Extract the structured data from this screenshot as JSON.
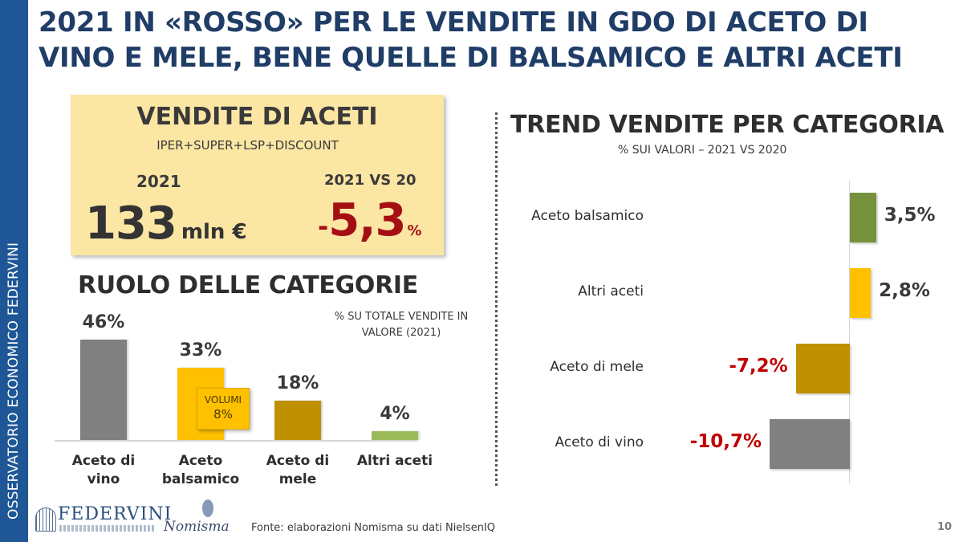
{
  "sidebar": {
    "text": "OSSERVATORIO ECONOMICO  FEDERVINI",
    "color": "#1e5696"
  },
  "title": {
    "line1": "2021 IN «ROSSO» PER LE VENDITE IN GDO DI ACETO DI",
    "line2": "VINO E MELE, BENE QUELLE DI BALSAMICO E ALTRI ACETI"
  },
  "kpi": {
    "title": "VENDITE DI ACETI",
    "subtitle": "IPER+SUPER+LSP+DISCOUNT",
    "year_label": "2021",
    "value": "133",
    "unit": "mln €",
    "vs_label": "2021 VS 20",
    "delta_sign": "-",
    "delta_value": "5,3",
    "delta_pct": "%",
    "delta_color": "#a50f14",
    "background": "#fbe6a4"
  },
  "roles": {
    "title": "RUOLO DELLE CATEGORIE",
    "subtitle_line1": "% SU TOTALE VENDITE IN",
    "subtitle_line2": "VALORE (2021)",
    "volumi_label": "VOLUMI",
    "volumi_value": "8%"
  },
  "trend": {
    "title": "TREND VENDITE PER CATEGORIA",
    "subtitle": "% SUI VALORI – 2021 VS 2020"
  },
  "footer": {
    "source": "Fonte: elaborazioni Nomisma su dati NielsenIQ",
    "page_number": "10",
    "logo1": "FEDERVINI",
    "logo2": "Nomisma"
  },
  "chart_data": [
    {
      "type": "bar",
      "title": "RUOLO DELLE CATEGORIE",
      "subtitle": "% SU TOTALE VENDITE IN VALORE (2021)",
      "categories": [
        "Aceto di vino",
        "Aceto balsamico",
        "Aceto di mele",
        "Altri aceti"
      ],
      "category_lines": [
        [
          "Aceto di",
          "vino"
        ],
        [
          "Aceto",
          "balsamico"
        ],
        [
          "Aceto di",
          "mele"
        ],
        [
          "Altri aceti",
          ""
        ]
      ],
      "values": [
        46,
        33,
        18,
        4
      ],
      "labels": [
        "46%",
        "33%",
        "18%",
        "4%"
      ],
      "colors": [
        "#808080",
        "#ffc000",
        "#bf9000",
        "#9bbb59"
      ],
      "annotation": {
        "target": "Aceto balsamico",
        "text": "VOLUMI 8%"
      },
      "unit": "%",
      "xlabel": "",
      "ylabel": "",
      "ylim": [
        0,
        50
      ],
      "grid": false,
      "legend": "none"
    },
    {
      "type": "bar",
      "orientation": "horizontal",
      "title": "TREND VENDITE PER CATEGORIA",
      "subtitle": "% SUI VALORI – 2021 VS 2020",
      "categories": [
        "Aceto balsamico",
        "Altri aceti",
        "Aceto di mele",
        "Aceto di vino"
      ],
      "values": [
        3.5,
        2.8,
        -7.2,
        -10.7
      ],
      "labels": [
        "3,5%",
        "2,8%",
        "-7,2%",
        "-10,7%"
      ],
      "colors": [
        "#76923c",
        "#ffc000",
        "#bf9000",
        "#808080"
      ],
      "label_colors": [
        "#3a3a3a",
        "#3a3a3a",
        "#c00000",
        "#c00000"
      ],
      "unit": "%",
      "xlabel": "",
      "ylabel": "",
      "xlim": [
        -12,
        5
      ],
      "grid": false,
      "legend": "none"
    }
  ]
}
